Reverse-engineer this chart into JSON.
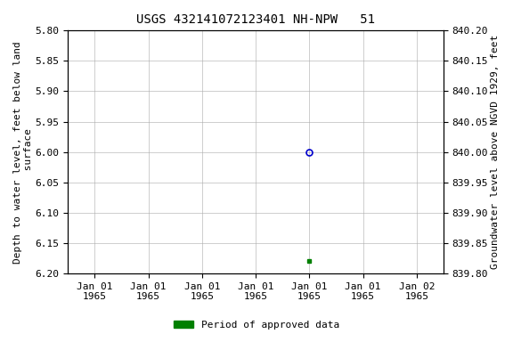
{
  "title": "USGS 432141072123401 NH-NPW   51",
  "ylabel_left": "Depth to water level, feet below land\n surface",
  "ylabel_right": "Groundwater level above NGVD 1929, feet",
  "ylim_left": [
    6.2,
    5.8
  ],
  "ylim_right": [
    839.8,
    840.2
  ],
  "yticks_left": [
    5.8,
    5.85,
    5.9,
    5.95,
    6.0,
    6.05,
    6.1,
    6.15,
    6.2
  ],
  "yticks_right": [
    840.2,
    840.15,
    840.1,
    840.05,
    840.0,
    839.95,
    839.9,
    839.85,
    839.8
  ],
  "data_point_x": 4,
  "data_point_y": 6.0,
  "green_point_x": 4,
  "green_point_y": 6.18,
  "point_color": "#0000cc",
  "green_color": "#008000",
  "background_color": "#ffffff",
  "grid_color": "#aaaaaa",
  "font_family": "monospace",
  "title_fontsize": 10,
  "axis_label_fontsize": 8,
  "tick_fontsize": 8,
  "legend_label": "Period of approved data",
  "xtick_positions": [
    0,
    1,
    2,
    3,
    4,
    5,
    6
  ],
  "xtick_labels": [
    "Jan 01\n1965",
    "Jan 01\n1965",
    "Jan 01\n1965",
    "Jan 01\n1965",
    "Jan 01\n1965",
    "Jan 01\n1965",
    "Jan 02\n1965"
  ],
  "xlim": [
    -0.5,
    6.5
  ]
}
